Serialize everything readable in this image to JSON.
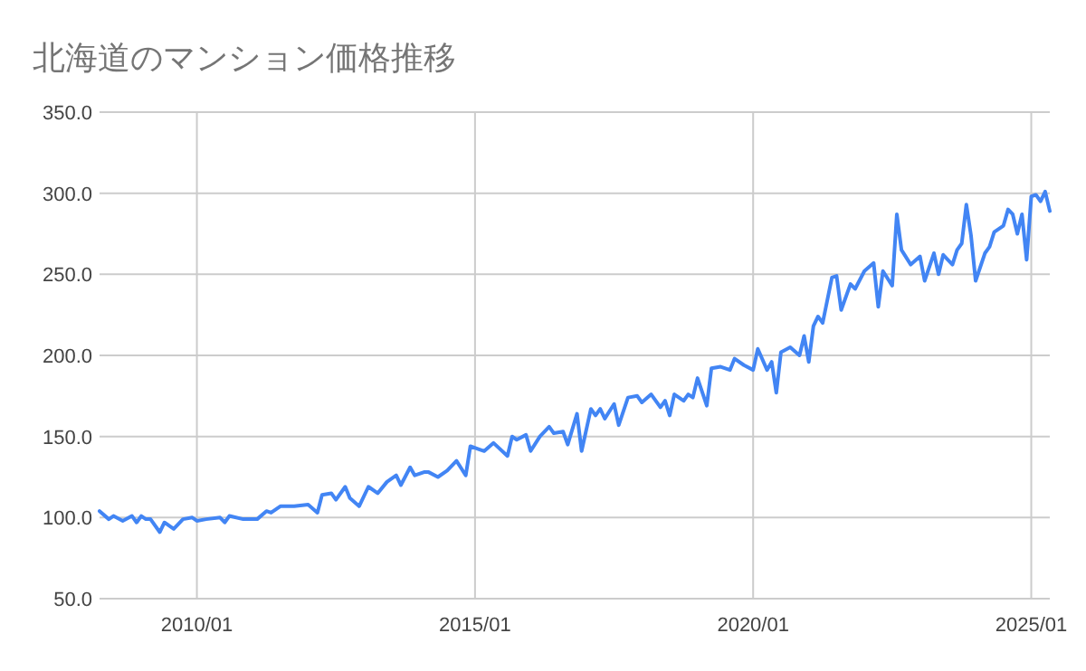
{
  "chart_data": {
    "type": "line",
    "title": "北海道のマンション価格推移",
    "x": [
      "2008-04",
      "2008-06",
      "2008-07",
      "2008-09",
      "2008-11",
      "2008-12",
      "2009-01",
      "2009-02",
      "2009-03",
      "2009-05",
      "2009-06",
      "2009-08",
      "2009-10",
      "2009-12",
      "2010-01",
      "2010-03",
      "2010-06",
      "2010-07",
      "2010-08",
      "2010-11",
      "2011-02",
      "2011-04",
      "2011-05",
      "2011-07",
      "2011-10",
      "2012-01",
      "2012-03",
      "2012-04",
      "2012-06",
      "2012-07",
      "2012-09",
      "2012-10",
      "2012-12",
      "2013-02",
      "2013-04",
      "2013-06",
      "2013-08",
      "2013-09",
      "2013-11",
      "2013-12",
      "2014-02",
      "2014-03",
      "2014-05",
      "2014-07",
      "2014-09",
      "2014-11",
      "2014-12",
      "2015-02",
      "2015-03",
      "2015-05",
      "2015-08",
      "2015-09",
      "2015-10",
      "2015-12",
      "2016-01",
      "2016-03",
      "2016-05",
      "2016-06",
      "2016-08",
      "2016-09",
      "2016-11",
      "2016-12",
      "2017-02",
      "2017-03",
      "2017-04",
      "2017-05",
      "2017-07",
      "2017-08",
      "2017-10",
      "2017-12",
      "2018-01",
      "2018-03",
      "2018-05",
      "2018-06",
      "2018-07",
      "2018-08",
      "2018-10",
      "2018-11",
      "2018-12",
      "2019-01",
      "2019-03",
      "2019-04",
      "2019-06",
      "2019-08",
      "2019-09",
      "2019-11",
      "2020-01",
      "2020-02",
      "2020-04",
      "2020-05",
      "2020-06",
      "2020-07",
      "2020-09",
      "2020-11",
      "2020-12",
      "2021-01",
      "2021-02",
      "2021-03",
      "2021-04",
      "2021-06",
      "2021-07",
      "2021-08",
      "2021-10",
      "2021-11",
      "2022-01",
      "2022-03",
      "2022-04",
      "2022-05",
      "2022-07",
      "2022-08",
      "2022-09",
      "2022-11",
      "2023-01",
      "2023-02",
      "2023-04",
      "2023-05",
      "2023-06",
      "2023-08",
      "2023-09",
      "2023-10",
      "2023-11",
      "2023-12",
      "2024-01",
      "2024-03",
      "2024-04",
      "2024-05",
      "2024-07",
      "2024-08",
      "2024-09",
      "2024-10",
      "2024-11",
      "2024-12",
      "2025-01",
      "2025-02",
      "2025-03",
      "2025-04",
      "2025-05"
    ],
    "series": [
      {
        "color": "#4285f4",
        "values": [
          104,
          99,
          101,
          98,
          101,
          97,
          101,
          99,
          99,
          91,
          97,
          93,
          99,
          100,
          98,
          99,
          100,
          97,
          101,
          99,
          99,
          104,
          103,
          107,
          107,
          108,
          103,
          114,
          115,
          111,
          119,
          112,
          107,
          119,
          115,
          122,
          126,
          120,
          131,
          126,
          128,
          128,
          125,
          129,
          135,
          126,
          144,
          142,
          141,
          146,
          138,
          150,
          148,
          151,
          141,
          150,
          156,
          152,
          153,
          145,
          164,
          141,
          167,
          163,
          167,
          161,
          170,
          157,
          174,
          175,
          171,
          176,
          168,
          172,
          163,
          176,
          172,
          176,
          174,
          186,
          169,
          192,
          193,
          191,
          198,
          194,
          191,
          204,
          191,
          196,
          177,
          202,
          205,
          200,
          212,
          196,
          218,
          224,
          220,
          248,
          249,
          228,
          244,
          241,
          252,
          257,
          230,
          252,
          243,
          287,
          265,
          256,
          261,
          246,
          263,
          250,
          262,
          256,
          265,
          269,
          293,
          274,
          246,
          263,
          267,
          276,
          280,
          290,
          287,
          275,
          287,
          259,
          298,
          299,
          295,
          301,
          289
        ]
      }
    ],
    "xlim": [
      "2008-04",
      "2025-05"
    ],
    "xticks": [
      {
        "value": "2010-01",
        "label": "2010/01"
      },
      {
        "value": "2015-01",
        "label": "2015/01"
      },
      {
        "value": "2020-01",
        "label": "2020/01"
      },
      {
        "value": "2025-01",
        "label": "2025/01"
      }
    ],
    "ylim": [
      50,
      350
    ],
    "yticks": [
      {
        "value": 50,
        "label": "50.0"
      },
      {
        "value": 100,
        "label": "100.0"
      },
      {
        "value": 150,
        "label": "150.0"
      },
      {
        "value": 200,
        "label": "200.0"
      },
      {
        "value": 250,
        "label": "250.0"
      },
      {
        "value": 300,
        "label": "300.0"
      },
      {
        "value": 350,
        "label": "350.0"
      }
    ],
    "grid": true
  }
}
